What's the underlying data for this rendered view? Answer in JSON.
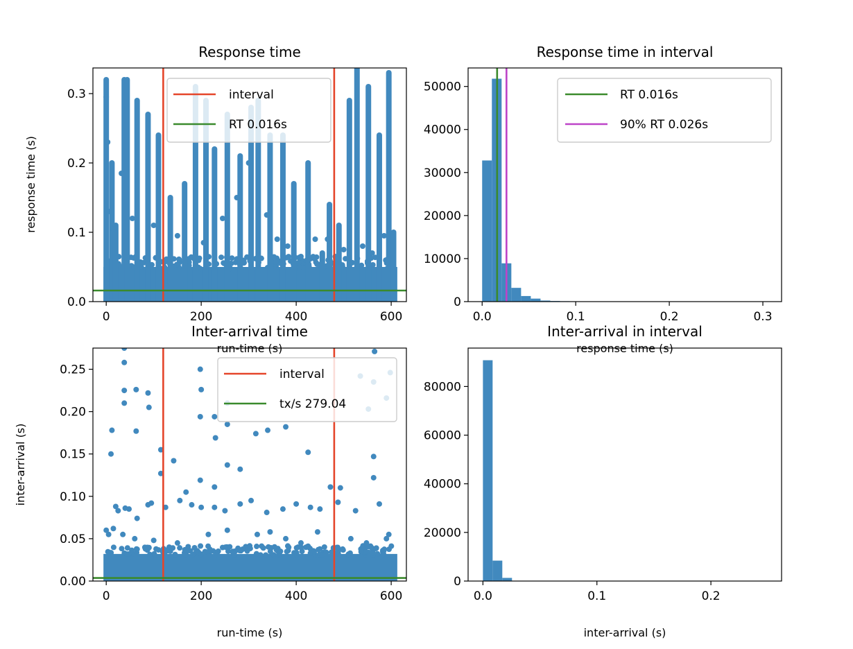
{
  "colors": {
    "point": "#4189be",
    "interval": "#e5452a",
    "rt": "#3a8a2c",
    "p90": "#bd44c8",
    "axis": "#000000"
  },
  "chart_data": [
    {
      "type": "scatter",
      "title": "Response time",
      "xlabel": "run-time (s)",
      "ylabel": "response time (s)",
      "xlim": [
        -28,
        632
      ],
      "ylim": [
        0,
        0.337
      ],
      "xticks": [
        0,
        200,
        400,
        600
      ],
      "xtick_labels": [
        "0",
        "200",
        "400",
        "600"
      ],
      "yticks": [
        0,
        0.1,
        0.2,
        0.3
      ],
      "ytick_labels": [
        "0.0",
        "0.1",
        "0.2",
        "0.3"
      ],
      "grid": false,
      "legend_position": "upper center",
      "legend": [
        {
          "label": "interval",
          "color_key": "interval"
        },
        {
          "label": "RT 0.016s",
          "color_key": "rt"
        }
      ],
      "vlines": [
        {
          "x": 120,
          "color_key": "interval"
        },
        {
          "x": 480,
          "color_key": "interval"
        }
      ],
      "hlines": [
        {
          "y": 0.016,
          "color_key": "rt"
        }
      ],
      "band": {
        "y_top": 0.05,
        "description": "dense band of points near zero across the full run"
      },
      "columns": [
        {
          "x": 0,
          "ymax": 0.32
        },
        {
          "x": 12,
          "ymax": 0.2
        },
        {
          "x": 20,
          "ymax": 0.11
        },
        {
          "x": 38,
          "ymax": 0.32
        },
        {
          "x": 44,
          "ymax": 0.32
        },
        {
          "x": 65,
          "ymax": 0.29
        },
        {
          "x": 88,
          "ymax": 0.27
        },
        {
          "x": 110,
          "ymax": 0.24
        },
        {
          "x": 135,
          "ymax": 0.15
        },
        {
          "x": 165,
          "ymax": 0.17
        },
        {
          "x": 188,
          "ymax": 0.31
        },
        {
          "x": 210,
          "ymax": 0.29
        },
        {
          "x": 228,
          "ymax": 0.22
        },
        {
          "x": 255,
          "ymax": 0.27
        },
        {
          "x": 282,
          "ymax": 0.21
        },
        {
          "x": 305,
          "ymax": 0.28
        },
        {
          "x": 320,
          "ymax": 0.29
        },
        {
          "x": 345,
          "ymax": 0.24
        },
        {
          "x": 372,
          "ymax": 0.24
        },
        {
          "x": 395,
          "ymax": 0.17
        },
        {
          "x": 425,
          "ymax": 0.2
        },
        {
          "x": 455,
          "ymax": 0.07
        },
        {
          "x": 470,
          "ymax": 0.14
        },
        {
          "x": 490,
          "ymax": 0.11
        },
        {
          "x": 512,
          "ymax": 0.29
        },
        {
          "x": 528,
          "ymax": 0.34
        },
        {
          "x": 552,
          "ymax": 0.31
        },
        {
          "x": 575,
          "ymax": 0.24
        },
        {
          "x": 595,
          "ymax": 0.33
        },
        {
          "x": 605,
          "ymax": 0.1
        }
      ],
      "outliers": [
        {
          "x": 0,
          "y": 0.295
        },
        {
          "x": 3,
          "y": 0.23
        },
        {
          "x": 7,
          "y": 0.13
        },
        {
          "x": 15,
          "y": 0.105
        },
        {
          "x": 32,
          "y": 0.185
        },
        {
          "x": 55,
          "y": 0.12
        },
        {
          "x": 100,
          "y": 0.11
        },
        {
          "x": 150,
          "y": 0.095
        },
        {
          "x": 205,
          "y": 0.085
        },
        {
          "x": 245,
          "y": 0.12
        },
        {
          "x": 275,
          "y": 0.15
        },
        {
          "x": 300,
          "y": 0.2
        },
        {
          "x": 338,
          "y": 0.125
        },
        {
          "x": 360,
          "y": 0.09
        },
        {
          "x": 382,
          "y": 0.08
        },
        {
          "x": 410,
          "y": 0.065
        },
        {
          "x": 440,
          "y": 0.09
        },
        {
          "x": 466,
          "y": 0.09
        },
        {
          "x": 500,
          "y": 0.075
        },
        {
          "x": 540,
          "y": 0.08
        },
        {
          "x": 560,
          "y": 0.07
        },
        {
          "x": 585,
          "y": 0.095
        }
      ]
    },
    {
      "type": "bar",
      "title": "Response time in interval",
      "xlabel": "response time (s)",
      "ylabel": "",
      "xlim": [
        -0.015,
        0.32
      ],
      "ylim": [
        0,
        54300
      ],
      "xticks": [
        0,
        0.1,
        0.2,
        0.3
      ],
      "xtick_labels": [
        "0.0",
        "0.1",
        "0.2",
        "0.3"
      ],
      "yticks": [
        0,
        10000,
        20000,
        30000,
        40000,
        50000
      ],
      "ytick_labels": [
        "0",
        "10000",
        "20000",
        "30000",
        "40000",
        "50000"
      ],
      "grid": false,
      "legend_position": "upper right",
      "legend": [
        {
          "label": "RT 0.016s",
          "color_key": "rt"
        },
        {
          "label": "90% RT 0.026s",
          "color_key": "p90"
        }
      ],
      "vlines": [
        {
          "x": 0.016,
          "color_key": "rt"
        },
        {
          "x": 0.026,
          "color_key": "p90"
        }
      ],
      "bin_edges": [
        0,
        0.0104,
        0.0208,
        0.0312,
        0.0416,
        0.052,
        0.0624,
        0.0728,
        0.0832,
        0.0936,
        0.104,
        0.1144,
        0.1248,
        0.1352,
        0.1456,
        0.156,
        0.1664,
        0.1768,
        0.1872,
        0.1976,
        0.208,
        0.2184,
        0.2288,
        0.2392,
        0.2496,
        0.26,
        0.2704,
        0.2808,
        0.2912,
        0.3016,
        0.312
      ],
      "values": [
        32800,
        51800,
        8900,
        3200,
        1300,
        700,
        250,
        150,
        100,
        80,
        60,
        50,
        40,
        40,
        30,
        30,
        20,
        20,
        20,
        15,
        15,
        10,
        10,
        10,
        10,
        10,
        10,
        10,
        10,
        10
      ]
    },
    {
      "type": "scatter",
      "title": "Inter-arrival time",
      "xlabel": "run-time (s)",
      "ylabel": "inter-arrival (s)",
      "xlim": [
        -28,
        632
      ],
      "ylim": [
        0,
        0.275
      ],
      "xticks": [
        0,
        200,
        400,
        600
      ],
      "xtick_labels": [
        "0",
        "200",
        "400",
        "600"
      ],
      "yticks": [
        0,
        0.05,
        0.1,
        0.15,
        0.2,
        0.25
      ],
      "ytick_labels": [
        "0.00",
        "0.05",
        "0.10",
        "0.15",
        "0.20",
        "0.25"
      ],
      "grid": false,
      "legend_position": "upper right",
      "legend": [
        {
          "label": "interval",
          "color_key": "interval"
        },
        {
          "label": "tx/s 279.04",
          "color_key": "rt"
        }
      ],
      "vlines": [
        {
          "x": 120,
          "color_key": "interval"
        },
        {
          "x": 480,
          "color_key": "interval"
        }
      ],
      "hlines": [
        {
          "y": 0.0036,
          "color_key": "rt"
        }
      ],
      "band": {
        "y_top": 0.032,
        "description": "dense band of points near zero across the full run"
      },
      "points": [
        {
          "x": 38,
          "y": 0.275
        },
        {
          "x": 38,
          "y": 0.258
        },
        {
          "x": 38,
          "y": 0.225
        },
        {
          "x": 38,
          "y": 0.21
        },
        {
          "x": 63,
          "y": 0.226
        },
        {
          "x": 88,
          "y": 0.222
        },
        {
          "x": 90,
          "y": 0.205
        },
        {
          "x": 12,
          "y": 0.178
        },
        {
          "x": 63,
          "y": 0.177
        },
        {
          "x": 10,
          "y": 0.15
        },
        {
          "x": 115,
          "y": 0.155
        },
        {
          "x": 115,
          "y": 0.127
        },
        {
          "x": 142,
          "y": 0.142
        },
        {
          "x": 198,
          "y": 0.25
        },
        {
          "x": 200,
          "y": 0.226
        },
        {
          "x": 198,
          "y": 0.194
        },
        {
          "x": 228,
          "y": 0.194
        },
        {
          "x": 230,
          "y": 0.169
        },
        {
          "x": 255,
          "y": 0.21
        },
        {
          "x": 255,
          "y": 0.185
        },
        {
          "x": 315,
          "y": 0.174
        },
        {
          "x": 340,
          "y": 0.178
        },
        {
          "x": 378,
          "y": 0.182
        },
        {
          "x": 425,
          "y": 0.152
        },
        {
          "x": 255,
          "y": 0.137
        },
        {
          "x": 282,
          "y": 0.132
        },
        {
          "x": 198,
          "y": 0.119
        },
        {
          "x": 228,
          "y": 0.111
        },
        {
          "x": 168,
          "y": 0.105
        },
        {
          "x": 472,
          "y": 0.111
        },
        {
          "x": 535,
          "y": 0.242
        },
        {
          "x": 563,
          "y": 0.235
        },
        {
          "x": 565,
          "y": 0.271
        },
        {
          "x": 590,
          "y": 0.216
        },
        {
          "x": 598,
          "y": 0.246
        },
        {
          "x": 552,
          "y": 0.203
        },
        {
          "x": 563,
          "y": 0.147
        },
        {
          "x": 563,
          "y": 0.122
        },
        {
          "x": 575,
          "y": 0.091
        },
        {
          "x": 493,
          "y": 0.11
        },
        {
          "x": 590,
          "y": 0.05
        },
        {
          "x": 20,
          "y": 0.088
        },
        {
          "x": 25,
          "y": 0.083
        },
        {
          "x": 40,
          "y": 0.086
        },
        {
          "x": 48,
          "y": 0.085
        },
        {
          "x": 65,
          "y": 0.074
        },
        {
          "x": 88,
          "y": 0.09
        },
        {
          "x": 95,
          "y": 0.092
        },
        {
          "x": 125,
          "y": 0.087
        },
        {
          "x": 155,
          "y": 0.095
        },
        {
          "x": 180,
          "y": 0.09
        },
        {
          "x": 200,
          "y": 0.087
        },
        {
          "x": 228,
          "y": 0.087
        },
        {
          "x": 250,
          "y": 0.083
        },
        {
          "x": 282,
          "y": 0.091
        },
        {
          "x": 305,
          "y": 0.095
        },
        {
          "x": 338,
          "y": 0.081
        },
        {
          "x": 372,
          "y": 0.085
        },
        {
          "x": 400,
          "y": 0.091
        },
        {
          "x": 430,
          "y": 0.087
        },
        {
          "x": 450,
          "y": 0.085
        },
        {
          "x": 488,
          "y": 0.093
        },
        {
          "x": 525,
          "y": 0.083
        },
        {
          "x": 0,
          "y": 0.06
        },
        {
          "x": 5,
          "y": 0.055
        },
        {
          "x": 15,
          "y": 0.062
        },
        {
          "x": 35,
          "y": 0.055
        },
        {
          "x": 60,
          "y": 0.05
        },
        {
          "x": 100,
          "y": 0.048
        },
        {
          "x": 150,
          "y": 0.045
        },
        {
          "x": 215,
          "y": 0.055
        },
        {
          "x": 255,
          "y": 0.06
        },
        {
          "x": 318,
          "y": 0.055
        },
        {
          "x": 345,
          "y": 0.058
        },
        {
          "x": 378,
          "y": 0.05
        },
        {
          "x": 410,
          "y": 0.045
        },
        {
          "x": 445,
          "y": 0.058
        },
        {
          "x": 515,
          "y": 0.05
        },
        {
          "x": 548,
          "y": 0.045
        },
        {
          "x": 595,
          "y": 0.055
        }
      ]
    },
    {
      "type": "bar",
      "title": "Inter-arrival in interval",
      "xlabel": "inter-arrival (s)",
      "ylabel": "",
      "xlim": [
        -0.013,
        0.262
      ],
      "ylim": [
        0,
        95800
      ],
      "xticks": [
        0,
        0.1,
        0.2
      ],
      "xtick_labels": [
        "0.0",
        "0.1",
        "0.2"
      ],
      "yticks": [
        0,
        20000,
        40000,
        60000,
        80000
      ],
      "ytick_labels": [
        "0",
        "20000",
        "40000",
        "60000",
        "80000"
      ],
      "grid": false,
      "bin_edges": [
        0,
        0.0085,
        0.017,
        0.0255,
        0.034,
        0.0425,
        0.051,
        0.0595,
        0.068,
        0.0765,
        0.085,
        0.0935,
        0.102,
        0.1105,
        0.119,
        0.1275,
        0.136,
        0.1445,
        0.153,
        0.1615,
        0.17,
        0.1785,
        0.187,
        0.1955,
        0.204,
        0.2125,
        0.221,
        0.2295,
        0.238,
        0.2465
      ],
      "values": [
        90800,
        8400,
        1300,
        120,
        40,
        20,
        10,
        8,
        6,
        5,
        5,
        4,
        3,
        3,
        2,
        2,
        2,
        2,
        1,
        1,
        1,
        1,
        1,
        1,
        1,
        1,
        1,
        1,
        1
      ]
    }
  ]
}
